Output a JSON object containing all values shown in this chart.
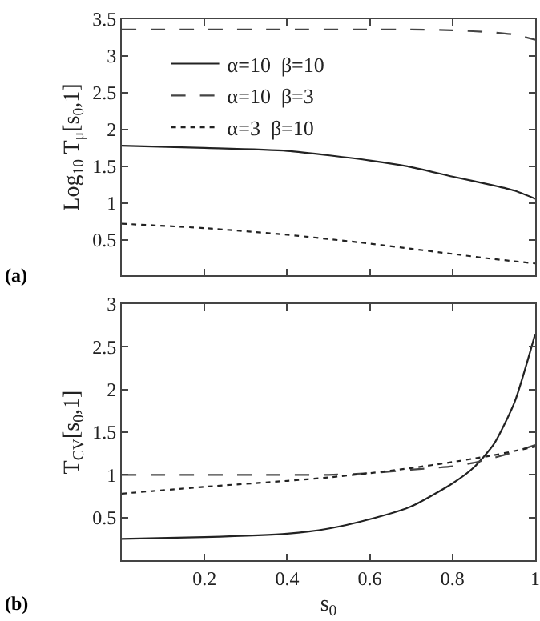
{
  "chart_data": [
    {
      "type": "line",
      "ylabel": "Log$_{10}$ T$_{μ}$[s$_{0}$,1]",
      "annotations": [
        "(a)"
      ],
      "x": [
        0,
        0.2,
        0.4,
        0.6,
        0.7,
        0.8,
        0.9,
        0.95,
        1
      ],
      "xlim": [
        0,
        1
      ],
      "xticks": [
        0.2,
        0.4,
        0.6,
        0.8,
        1
      ],
      "ylim": [
        0.02,
        3.5
      ],
      "yticks": [
        0.5,
        1,
        1.5,
        2,
        2.5,
        3,
        3.5
      ],
      "tick_labels": "y",
      "grid": false,
      "legend": "top",
      "marker": "none",
      "series": [
        {
          "name": "α=10  β=10",
          "color": "#222222",
          "line_style": "solid",
          "values": [
            1.78,
            1.75,
            1.71,
            1.58,
            1.49,
            1.36,
            1.24,
            1.17,
            1.06
          ]
        },
        {
          "name": "α=10  β=3",
          "color": "#444444",
          "line_style": "dashed",
          "values": [
            3.36,
            3.36,
            3.36,
            3.36,
            3.36,
            3.35,
            3.32,
            3.29,
            3.22
          ]
        },
        {
          "name": "α=3  β=10",
          "color": "#222222",
          "line_style": "dotted",
          "values": [
            0.72,
            0.66,
            0.57,
            0.45,
            0.38,
            0.31,
            0.24,
            0.21,
            0.18
          ]
        }
      ]
    },
    {
      "type": "line",
      "xlabel": "s$_{0}$",
      "ylabel": "T$_{CV}$[s$_{0}$,1]",
      "annotations": [
        "(b)"
      ],
      "x": [
        0,
        0.2,
        0.4,
        0.5,
        0.6,
        0.7,
        0.8,
        0.85,
        0.9,
        0.95,
        1
      ],
      "xlim": [
        0,
        1
      ],
      "xticks": [
        0.2,
        0.4,
        0.6,
        0.8,
        1
      ],
      "ylim": [
        0,
        3
      ],
      "yticks": [
        0.5,
        1,
        1.5,
        2,
        2.5,
        3
      ],
      "grid": false,
      "legend": false,
      "marker": "none",
      "series": [
        {
          "color": "#222222",
          "line_style": "solid",
          "values": [
            0.25,
            0.27,
            0.31,
            0.37,
            0.48,
            0.63,
            0.9,
            1.08,
            1.36,
            1.85,
            2.65
          ]
        },
        {
          "color": "#444444",
          "line_style": "dashed",
          "values": [
            1,
            1,
            1,
            1,
            1.02,
            1.06,
            1.1,
            1.14,
            1.2,
            1.27,
            1.35
          ]
        },
        {
          "color": "#222222",
          "line_style": "dotted",
          "values": [
            0.78,
            0.86,
            0.93,
            0.97,
            1.02,
            1.08,
            1.15,
            1.19,
            1.23,
            1.28,
            1.33
          ]
        }
      ]
    }
  ]
}
